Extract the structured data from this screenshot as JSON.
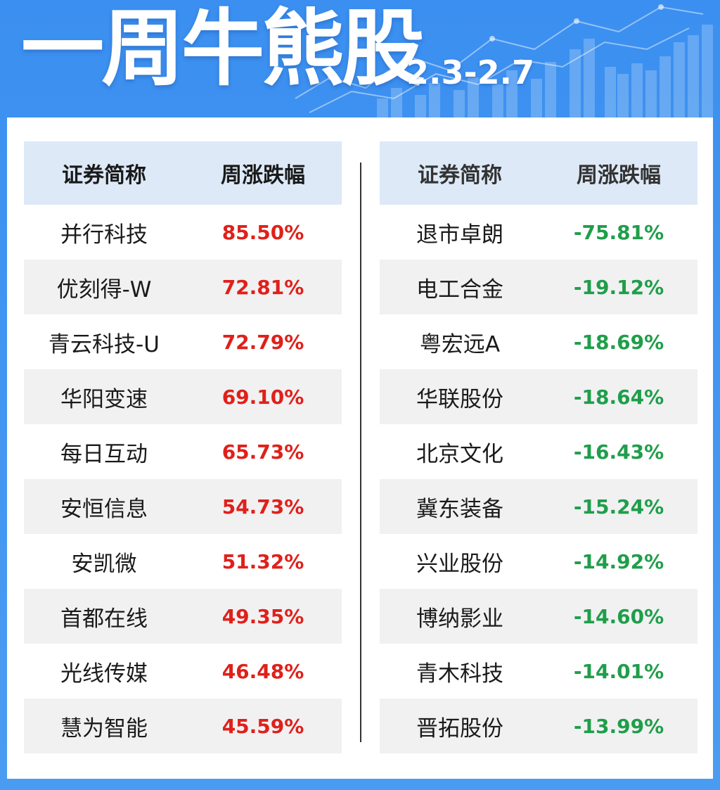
{
  "header": {
    "title": "一周牛熊股",
    "date_range": "2.3-2.7"
  },
  "bull_table": {
    "col_name": "证券简称",
    "col_change": "周涨跌幅",
    "rows": [
      {
        "name": "并行科技",
        "change": "85.50%"
      },
      {
        "name": "优刻得-W",
        "change": "72.81%"
      },
      {
        "name": "青云科技-U",
        "change": "72.79%"
      },
      {
        "name": "华阳变速",
        "change": "69.10%"
      },
      {
        "name": "每日互动",
        "change": "65.73%"
      },
      {
        "name": "安恒信息",
        "change": "54.73%"
      },
      {
        "name": "安凯微",
        "change": "51.32%"
      },
      {
        "name": "首都在线",
        "change": "49.35%"
      },
      {
        "name": "光线传媒",
        "change": "46.48%"
      },
      {
        "name": "慧为智能",
        "change": "45.59%"
      }
    ]
  },
  "bear_table": {
    "col_name": "证券简称",
    "col_change": "周涨跌幅",
    "rows": [
      {
        "name": "退市卓朗",
        "change": "-75.81%"
      },
      {
        "name": "电工合金",
        "change": "-19.12%"
      },
      {
        "name": "粤宏远A",
        "change": "-18.69%"
      },
      {
        "name": "华联股份",
        "change": "-18.64%"
      },
      {
        "name": "北京文化",
        "change": "-16.43%"
      },
      {
        "name": "冀东装备",
        "change": "-15.24%"
      },
      {
        "name": "兴业股份",
        "change": "-14.92%"
      },
      {
        "name": "博纳影业",
        "change": "-14.60%"
      },
      {
        "name": "青木科技",
        "change": "-14.01%"
      },
      {
        "name": "晋拓股份",
        "change": "-13.99%"
      }
    ]
  },
  "colors": {
    "background": "#3b8ff0",
    "header_row": "#dde9f7",
    "alt_row": "#f1f1f2",
    "gain": "#e0201a",
    "loss": "#1f9e4a"
  }
}
